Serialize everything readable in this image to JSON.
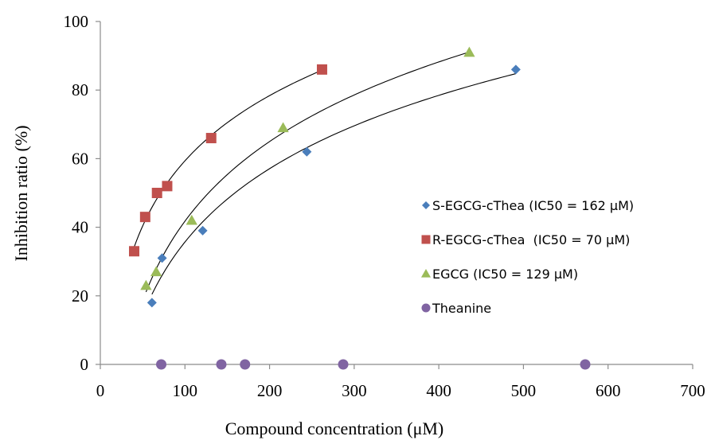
{
  "chart_data": {
    "type": "scatter",
    "xlabel": "Compound concentration (μM)",
    "ylabel": "Inhibition ratio (%)",
    "xlim": [
      0,
      700
    ],
    "ylim": [
      0,
      100
    ],
    "xticks": [
      "0",
      "100",
      "200",
      "300",
      "400",
      "500",
      "600",
      "700"
    ],
    "yticks": [
      "0",
      "20",
      "40",
      "60",
      "80",
      "100"
    ],
    "grid": false,
    "legend_position": "right",
    "series": [
      {
        "name": "S-EGCG-cThea (IC50 = 162 μM)",
        "marker": "diamond",
        "color": "#4a7ebb",
        "x": [
          61,
          73,
          121,
          244,
          491
        ],
        "y": [
          18,
          31,
          39,
          62,
          86
        ],
        "trendline": "logarithmic"
      },
      {
        "name": "R-EGCG-cThea  (IC50 = 70 μM)",
        "marker": "square",
        "color": "#c0504d",
        "x": [
          40,
          53,
          67,
          79,
          131,
          262
        ],
        "y": [
          33,
          43,
          50,
          52,
          66,
          86
        ],
        "trendline": "logarithmic"
      },
      {
        "name": "EGCG (IC50 = 129 μM)",
        "marker": "triangle",
        "color": "#9bbb59",
        "x": [
          54,
          66,
          108,
          216,
          436
        ],
        "y": [
          23,
          27,
          42,
          69,
          91
        ],
        "trendline": "logarithmic"
      },
      {
        "name": "Theanine",
        "marker": "circle",
        "color": "#8064a2",
        "x": [
          72,
          143,
          171,
          287,
          573
        ],
        "y": [
          0,
          0,
          0,
          0,
          0
        ],
        "trendline": "none"
      }
    ]
  }
}
